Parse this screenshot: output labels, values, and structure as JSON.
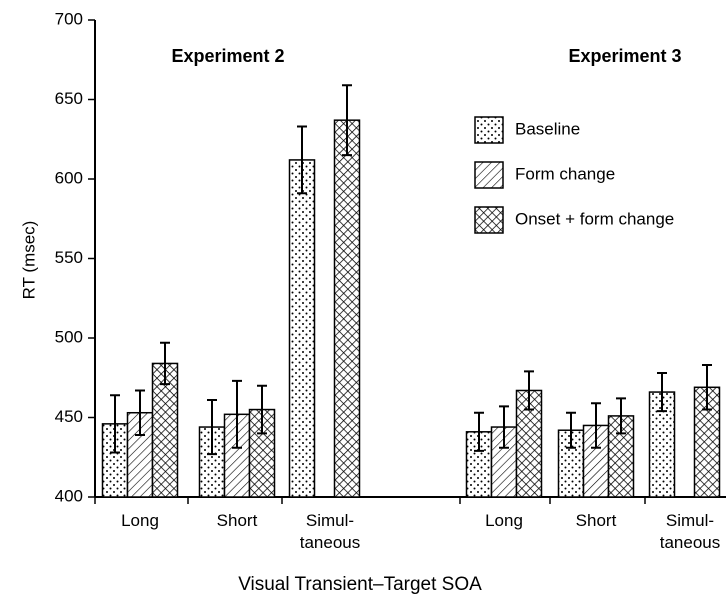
{
  "chart_data": {
    "type": "bar",
    "y_label": "RT (msec)",
    "x_label": "Visual Transient–Target SOA",
    "groups": [
      "Experiment 2",
      "Experiment 3"
    ],
    "categories": [
      "Long",
      "Short",
      "Simul-\ntaneous",
      "Long",
      "Short",
      "Simul-\ntaneous"
    ],
    "ylim": [
      400,
      700
    ],
    "yticks": [
      400,
      450,
      500,
      550,
      600,
      650,
      700
    ],
    "series": [
      {
        "name": "Baseline",
        "color": "#000000",
        "pattern": "dots",
        "values": [
          446,
          444,
          612,
          441,
          442,
          466
        ],
        "errors": [
          18,
          17,
          21,
          12,
          11,
          12
        ]
      },
      {
        "name": "Form change",
        "color": "#000000",
        "pattern": "hatch",
        "values": [
          453,
          452,
          null,
          444,
          445,
          null
        ],
        "errors": [
          14,
          21,
          null,
          13,
          14,
          null
        ]
      },
      {
        "name": "Onset + form change",
        "color": "#000000",
        "pattern": "crosshatch",
        "values": [
          484,
          455,
          637,
          467,
          451,
          469
        ],
        "errors": [
          13,
          15,
          22,
          12,
          11,
          14
        ]
      }
    ]
  }
}
